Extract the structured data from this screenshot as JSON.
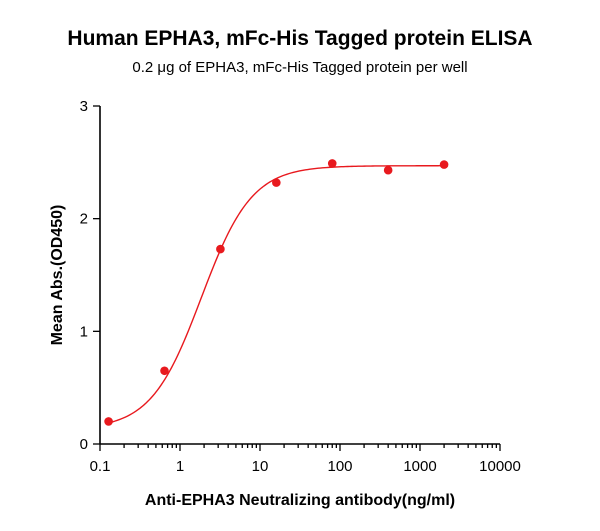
{
  "chart_data": {
    "type": "scatter",
    "title": "Human EPHA3, mFc-His Tagged protein ELISA",
    "subtitle": "0.2 μg of EPHA3, mFc-His Tagged protein per well",
    "xlabel": "Anti-EPHA3 Neutralizing antibody(ng/ml)",
    "ylabel": "Mean Abs.(OD450)",
    "x_scale": "log",
    "xlim": [
      0.1,
      10000
    ],
    "ylim": [
      0,
      3
    ],
    "x_ticks": [
      0.1,
      1,
      10,
      100,
      1000,
      10000
    ],
    "x_tick_labels": [
      "0.1",
      "1",
      "10",
      "100",
      "1000",
      "10000"
    ],
    "y_ticks": [
      0,
      1,
      2,
      3
    ],
    "y_tick_labels": [
      "0",
      "1",
      "2",
      "3"
    ],
    "grid": false,
    "series": [
      {
        "color": "#e8191e",
        "x": [
          0.128,
          0.64,
          3.2,
          16,
          80,
          400,
          2000
        ],
        "y": [
          0.2,
          0.65,
          1.73,
          2.32,
          2.49,
          2.43,
          2.48
        ],
        "fit": "four-parameter logistic"
      }
    ]
  }
}
